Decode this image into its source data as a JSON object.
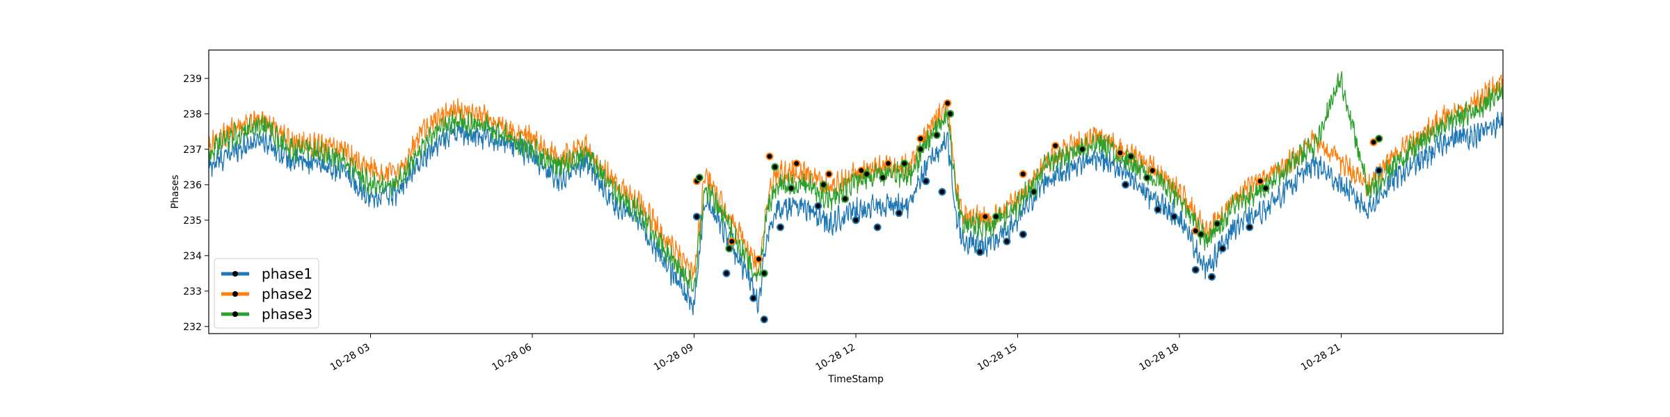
{
  "chart_data": {
    "type": "line",
    "xlabel": "TimeStamp",
    "ylabel": "Phases",
    "x_range": [
      "10-28 00:00",
      "10-29 00:00"
    ],
    "ylim": [
      231.8,
      239.8
    ],
    "x_ticks": [
      {
        "label": "10-28 03",
        "hour": 3
      },
      {
        "label": "10-28 06",
        "hour": 6
      },
      {
        "label": "10-28 09",
        "hour": 9
      },
      {
        "label": "10-28 12",
        "hour": 12
      },
      {
        "label": "10-28 15",
        "hour": 15
      },
      {
        "label": "10-28 18",
        "hour": 18
      },
      {
        "label": "10-28 21",
        "hour": 21
      }
    ],
    "y_ticks": [
      232,
      233,
      234,
      235,
      236,
      237,
      238,
      239
    ],
    "grid": false,
    "legend": {
      "position": "lower-left"
    },
    "series": [
      {
        "name": "phase1",
        "color": "#1f77b4",
        "hours": [
          0,
          0.5,
          1,
          1.5,
          2,
          2.5,
          3,
          3.5,
          4,
          4.5,
          5,
          5.5,
          6,
          6.5,
          7,
          7.5,
          8,
          8.5,
          9,
          9.2,
          9.5,
          10,
          10.2,
          10.35,
          10.5,
          11,
          11.5,
          12,
          12.5,
          13,
          13.3,
          13.7,
          13.85,
          14,
          14.5,
          15,
          15.5,
          16,
          16.5,
          17,
          17.5,
          18,
          18.5,
          19,
          19.5,
          20,
          20.5,
          21,
          21.5,
          22,
          22.5,
          23,
          23.5,
          24
        ],
        "values": [
          236.5,
          237.0,
          237.3,
          236.7,
          236.6,
          236.4,
          235.6,
          235.8,
          236.8,
          237.5,
          237.4,
          237.2,
          236.8,
          236.1,
          236.7,
          235.5,
          234.9,
          233.7,
          232.6,
          235.6,
          234.9,
          233.4,
          232.7,
          234.6,
          235.3,
          235.4,
          234.9,
          235.3,
          235.4,
          235.4,
          236.5,
          237.3,
          235.2,
          234.4,
          234.3,
          235.0,
          236.1,
          236.5,
          236.8,
          236.3,
          235.6,
          235.1,
          233.6,
          234.8,
          235.2,
          235.9,
          236.6,
          236.0,
          235.3,
          236.2,
          236.7,
          237.3,
          237.4,
          237.8
        ],
        "markers": [
          [
            9.05,
            235.1
          ],
          [
            9.6,
            233.5
          ],
          [
            10.1,
            232.8
          ],
          [
            10.3,
            232.2
          ],
          [
            10.6,
            234.8
          ],
          [
            11.3,
            235.4
          ],
          [
            12.0,
            235.0
          ],
          [
            12.4,
            234.8
          ],
          [
            12.8,
            235.2
          ],
          [
            13.3,
            236.1
          ],
          [
            13.6,
            235.8
          ],
          [
            14.3,
            234.1
          ],
          [
            14.8,
            234.4
          ],
          [
            15.1,
            234.6
          ],
          [
            17.0,
            236.0
          ],
          [
            17.6,
            235.3
          ],
          [
            17.9,
            235.1
          ],
          [
            18.3,
            233.6
          ],
          [
            18.6,
            233.4
          ],
          [
            18.8,
            234.2
          ],
          [
            19.3,
            234.8
          ],
          [
            21.7,
            236.4
          ]
        ]
      },
      {
        "name": "phase2",
        "color": "#ff7f0e",
        "hours": [
          0,
          0.5,
          1,
          1.5,
          2,
          2.5,
          3,
          3.5,
          4,
          4.5,
          5,
          5.5,
          6,
          6.5,
          7,
          7.5,
          8,
          8.5,
          9,
          9.2,
          9.5,
          10,
          10.2,
          10.35,
          10.5,
          11,
          11.5,
          12,
          12.5,
          13,
          13.3,
          13.7,
          13.85,
          14,
          14.5,
          15,
          15.5,
          16,
          16.5,
          17,
          17.5,
          18,
          18.5,
          19,
          19.5,
          20,
          20.5,
          21,
          21.5,
          22,
          22.5,
          23,
          23.5,
          24
        ],
        "values": [
          237.1,
          237.6,
          237.9,
          237.2,
          237.1,
          237.0,
          236.4,
          236.3,
          237.6,
          238.1,
          238.0,
          237.6,
          237.3,
          236.7,
          237.1,
          236.1,
          235.5,
          234.4,
          233.4,
          236.3,
          235.5,
          234.2,
          233.6,
          235.5,
          236.3,
          236.4,
          235.9,
          236.3,
          236.5,
          236.5,
          237.4,
          238.3,
          236.0,
          235.1,
          235.0,
          235.6,
          236.6,
          237.1,
          237.4,
          236.9,
          236.5,
          235.8,
          234.7,
          235.6,
          236.1,
          236.6,
          237.3,
          236.6,
          236.0,
          236.8,
          237.4,
          238.0,
          238.3,
          238.9
        ],
        "markers": [
          [
            9.05,
            236.1
          ],
          [
            9.7,
            234.4
          ],
          [
            10.2,
            233.9
          ],
          [
            10.4,
            236.8
          ],
          [
            10.9,
            236.6
          ],
          [
            11.5,
            236.3
          ],
          [
            12.1,
            236.4
          ],
          [
            12.6,
            236.6
          ],
          [
            13.2,
            237.3
          ],
          [
            13.7,
            238.3
          ],
          [
            14.4,
            235.1
          ],
          [
            15.1,
            236.3
          ],
          [
            15.7,
            237.1
          ],
          [
            16.9,
            236.9
          ],
          [
            17.5,
            236.4
          ],
          [
            18.3,
            234.7
          ],
          [
            19.5,
            236.1
          ],
          [
            21.6,
            237.2
          ]
        ]
      },
      {
        "name": "phase3",
        "color": "#2ca02c",
        "hours": [
          0,
          0.5,
          1,
          1.5,
          2,
          2.5,
          3,
          3.5,
          4,
          4.5,
          5,
          5.5,
          6,
          6.5,
          7,
          7.5,
          8,
          8.5,
          9,
          9.2,
          9.5,
          10,
          10.2,
          10.35,
          10.5,
          11,
          11.5,
          12,
          12.5,
          13,
          13.3,
          13.7,
          13.85,
          14,
          14.5,
          15,
          15.5,
          16,
          16.5,
          17,
          17.5,
          18,
          18.5,
          19,
          19.5,
          20,
          20.5,
          21,
          21.5,
          22,
          22.5,
          23,
          23.5,
          24
        ],
        "values": [
          236.9,
          237.4,
          237.7,
          237.0,
          236.9,
          236.7,
          236.0,
          236.0,
          237.2,
          237.8,
          237.7,
          237.4,
          237.0,
          236.5,
          236.9,
          235.8,
          235.2,
          234.1,
          233.1,
          236.0,
          235.2,
          233.9,
          233.3,
          235.2,
          235.9,
          236.1,
          235.6,
          236.1,
          236.3,
          236.3,
          237.1,
          238.1,
          235.8,
          234.9,
          234.8,
          235.4,
          236.5,
          236.9,
          237.2,
          236.7,
          236.2,
          235.6,
          234.4,
          235.4,
          235.9,
          236.5,
          237.1,
          239.0,
          235.8,
          236.6,
          237.2,
          237.8,
          238.1,
          238.7
        ],
        "markers": [
          [
            9.1,
            236.2
          ],
          [
            9.65,
            234.2
          ],
          [
            10.3,
            233.5
          ],
          [
            10.5,
            236.5
          ],
          [
            10.8,
            235.9
          ],
          [
            11.4,
            236.0
          ],
          [
            11.8,
            235.6
          ],
          [
            12.2,
            236.3
          ],
          [
            12.5,
            236.2
          ],
          [
            12.9,
            236.6
          ],
          [
            13.2,
            237.0
          ],
          [
            13.5,
            237.4
          ],
          [
            13.75,
            238.0
          ],
          [
            14.6,
            235.1
          ],
          [
            15.3,
            235.8
          ],
          [
            16.2,
            237.0
          ],
          [
            17.1,
            236.8
          ],
          [
            17.4,
            236.2
          ],
          [
            18.4,
            234.6
          ],
          [
            18.7,
            234.9
          ],
          [
            19.6,
            235.9
          ],
          [
            21.7,
            237.3
          ]
        ]
      }
    ]
  }
}
